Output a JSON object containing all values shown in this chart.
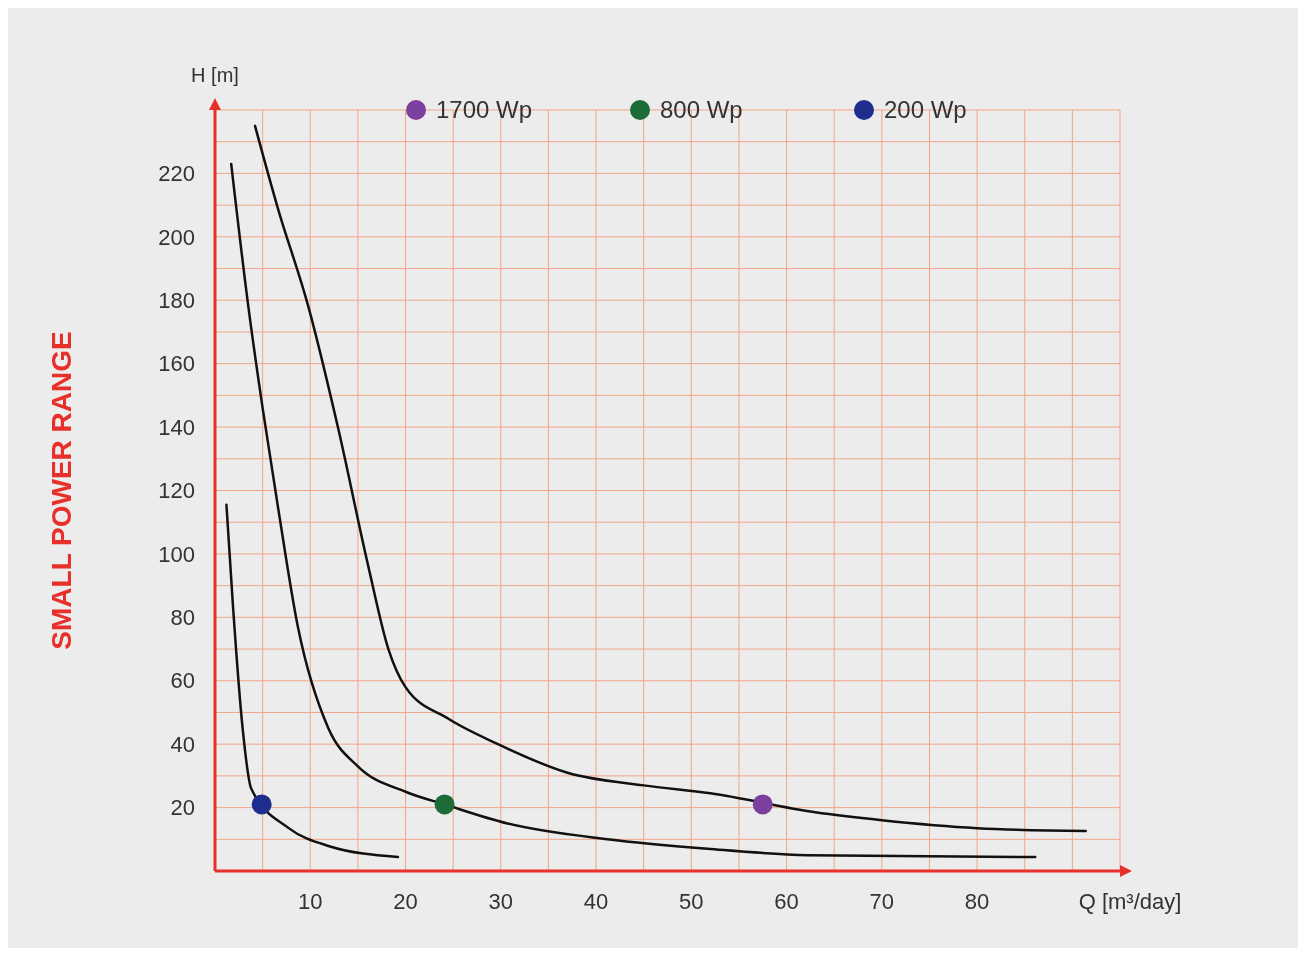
{
  "chart_data": {
    "type": "line",
    "title": "SMALL POWER RANGE",
    "xlabel": "Q [m³/day]",
    "ylabel": "H [m]",
    "xlim": [
      0,
      95
    ],
    "ylim": [
      0,
      240
    ],
    "xticks": [
      10,
      20,
      30,
      40,
      50,
      60,
      70,
      80
    ],
    "yticks": [
      20,
      40,
      60,
      80,
      100,
      120,
      140,
      160,
      180,
      200,
      220
    ],
    "grid": true,
    "legend": "top",
    "marker": "none",
    "line_style": "solid",
    "series": [
      {
        "color": "#111111",
        "x": [
          4.2,
          6.6,
          9.8,
          12.9,
          16.1,
          18.2,
          20,
          24.5,
          29.7,
          37,
          45,
          52,
          63,
          70,
          80,
          91.4
        ],
        "values": [
          235,
          209,
          178,
          140,
          96,
          70,
          58,
          48,
          40,
          31,
          27,
          24.5,
          18.5,
          16,
          13.5,
          12.6
        ]
      },
      {
        "color": "#111111",
        "x": [
          1.7,
          3.5,
          5,
          6.6,
          8.7,
          11.9,
          15,
          20,
          24.1,
          30.7,
          41.2,
          51.7,
          62.2,
          86.1
        ],
        "values": [
          223,
          178,
          146,
          115,
          77,
          45,
          33,
          25,
          21,
          15,
          10,
          7,
          5,
          4.4
        ]
      },
      {
        "color": "#111111",
        "x": [
          1.2,
          1.9,
          2.9,
          3.8,
          7.7,
          11.9,
          19.2
        ],
        "values": [
          115.5,
          83,
          45,
          26,
          13.6,
          7.9,
          4.4
        ]
      },
      {
        "type": "scatter",
        "name": "1700 Wp",
        "color": "#7b3f9e",
        "marker": "circle",
        "x": [
          57.5
        ],
        "values": [
          21
        ]
      },
      {
        "type": "scatter",
        "name": "800 Wp",
        "color": "#1e6b3a",
        "marker": "circle",
        "x": [
          24.1
        ],
        "values": [
          21
        ]
      },
      {
        "type": "scatter",
        "name": "200 Wp",
        "color": "#1f2d8f",
        "marker": "circle",
        "x": [
          4.9
        ],
        "values": [
          21
        ]
      }
    ]
  }
}
